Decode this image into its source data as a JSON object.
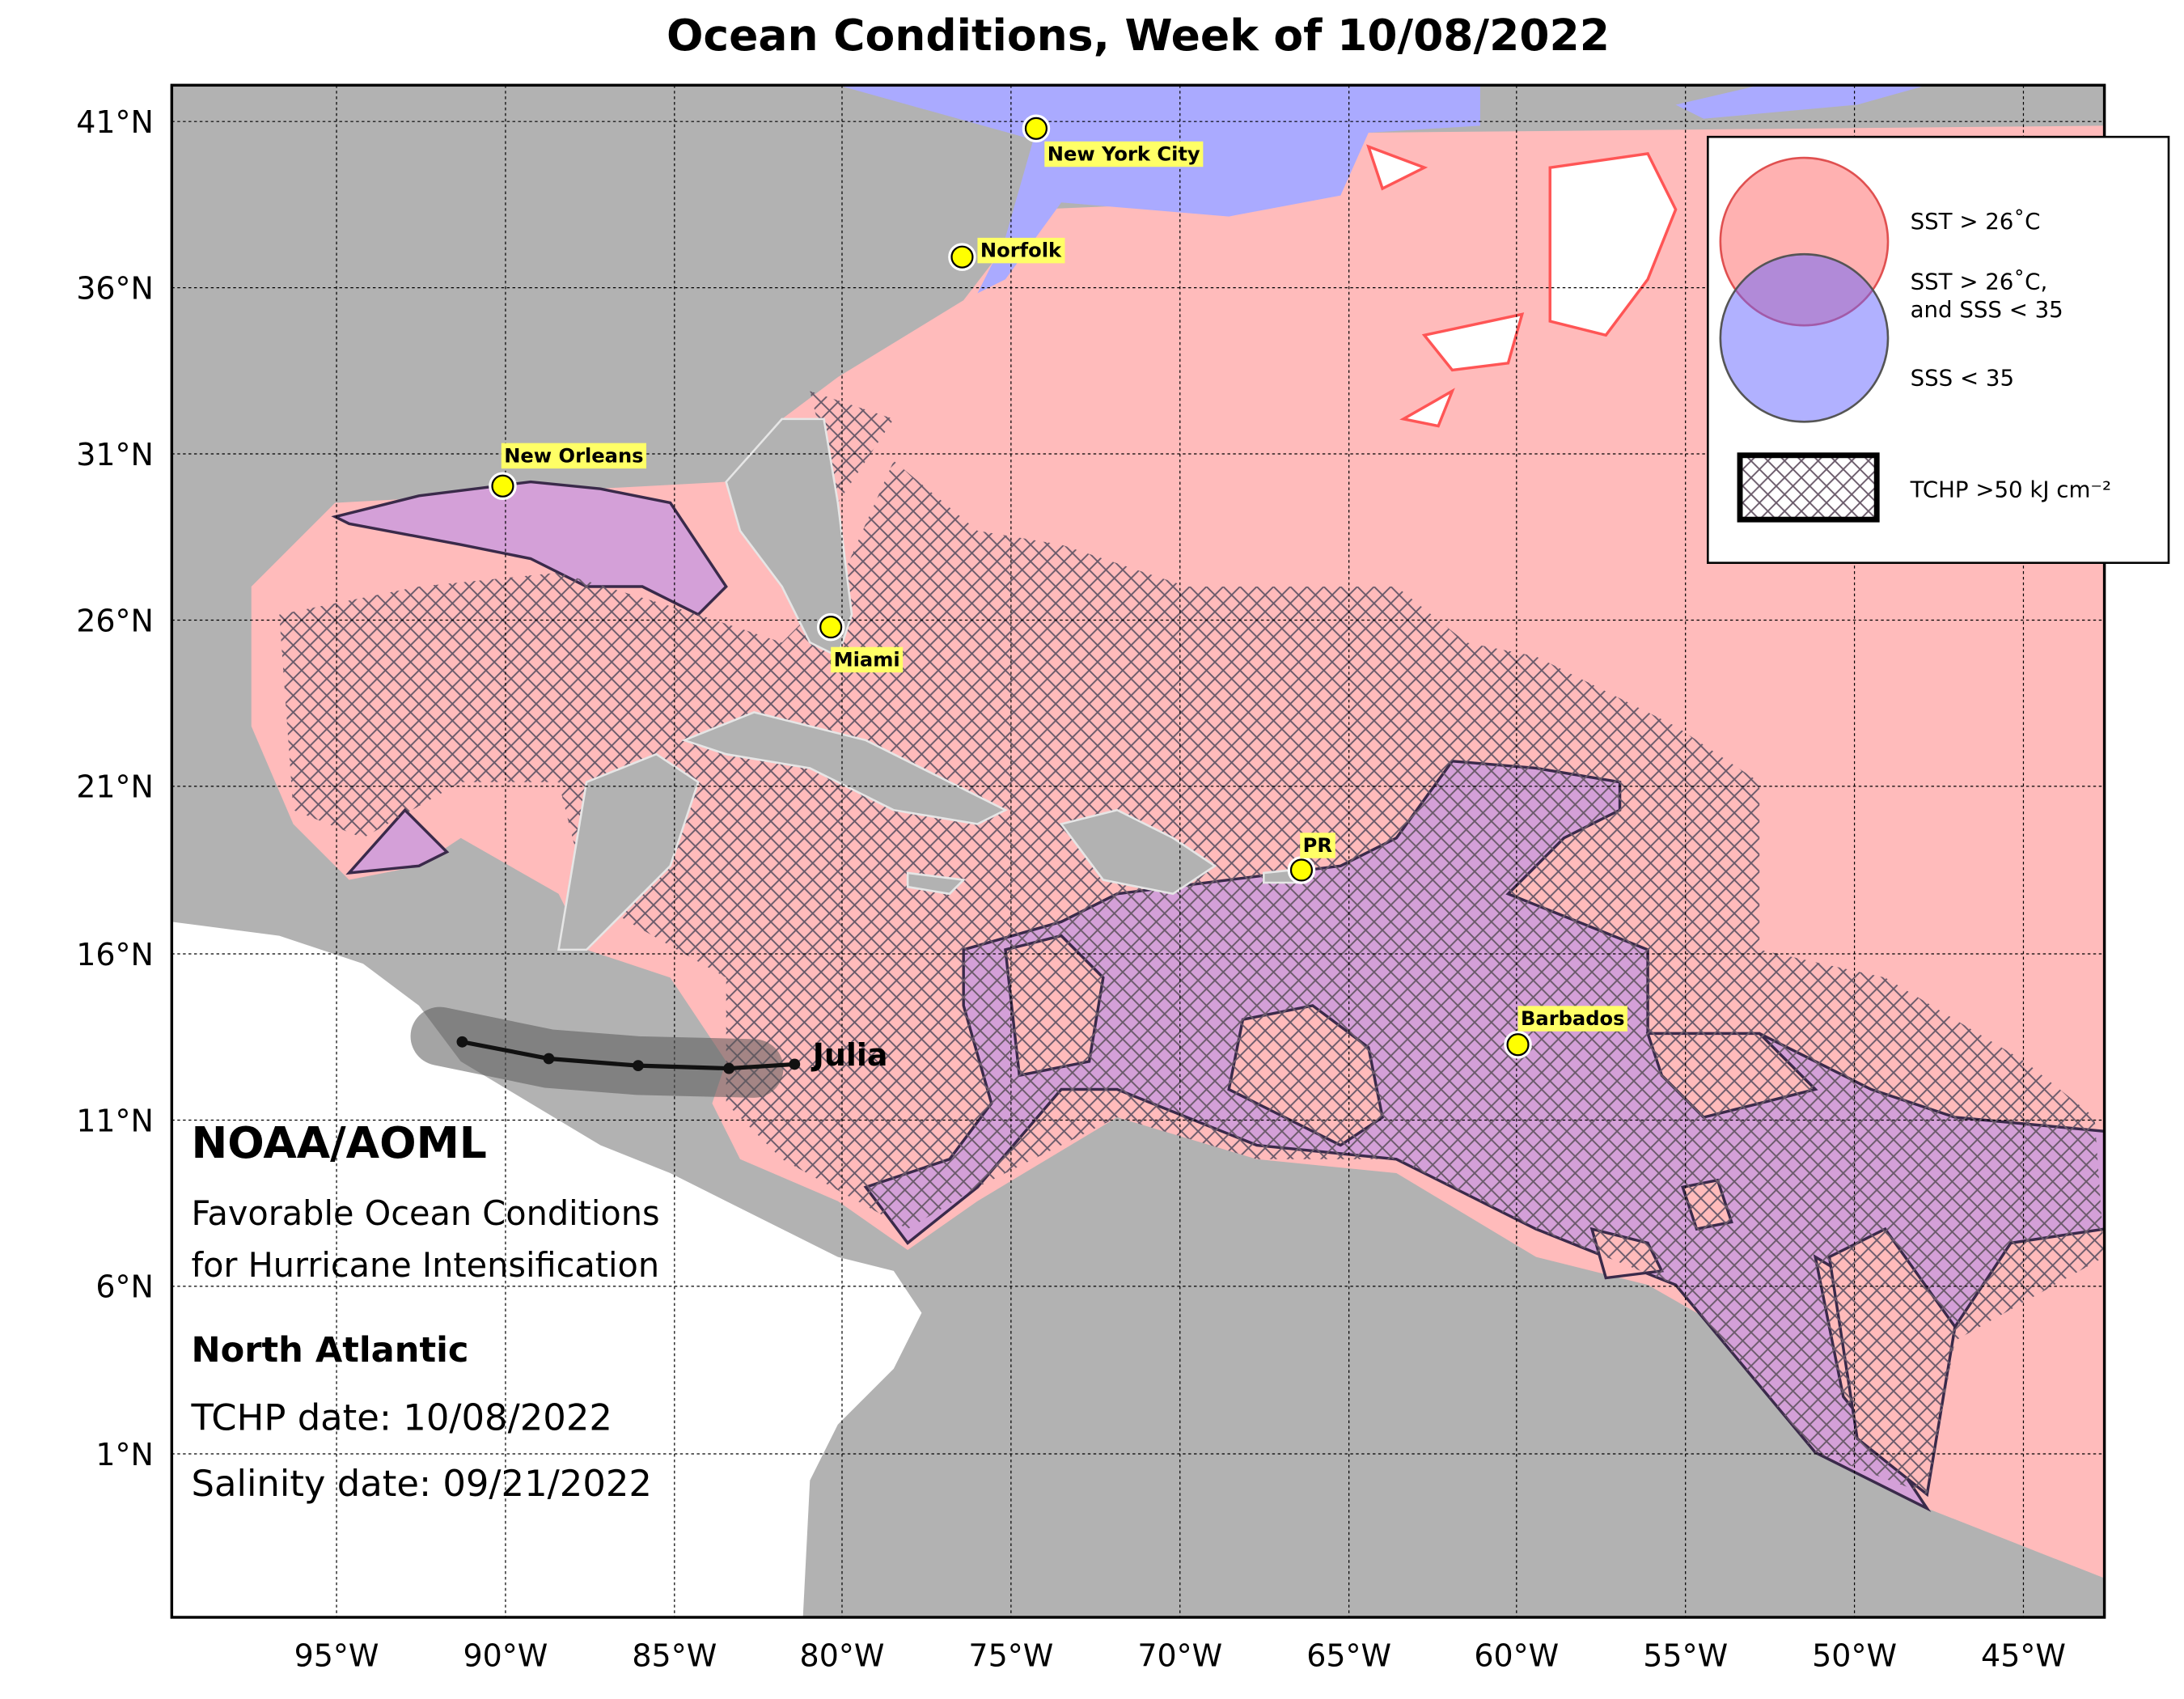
{
  "header": {
    "title": "Ocean Conditions, Week of 10/08/2022"
  },
  "axes": {
    "lat_labels": [
      "41°N",
      "36°N",
      "31°N",
      "26°N",
      "21°N",
      "16°N",
      "11°N",
      "6°N",
      "1°N"
    ],
    "lon_labels": [
      "95°W",
      "90°W",
      "85°W",
      "80°W",
      "75°W",
      "70°W",
      "65°W",
      "60°W",
      "55°W",
      "50°W",
      "45°W"
    ]
  },
  "legend": {
    "items": [
      {
        "label": [
          "SST > 26˚C"
        ]
      },
      {
        "label": [
          "SST > 26˚C,",
          "and SSS < 35"
        ]
      },
      {
        "label": [
          "SSS < 35"
        ]
      },
      {
        "label": [
          "TCHP >50 kJ cm⁻²"
        ]
      }
    ]
  },
  "cities": [
    "New York City",
    "Norfolk",
    "New Orleans",
    "Miami",
    "PR",
    "Barbados"
  ],
  "storm": {
    "name": "Julia"
  },
  "info": {
    "org": "NOAA/AOML",
    "description": [
      "Favorable Ocean Conditions",
      "for Hurricane Intensification"
    ],
    "region": "North Atlantic",
    "tchp_date": "TCHP date: 10/08/2022",
    "salinity_date": "Salinity date: 09/21/2022"
  }
}
